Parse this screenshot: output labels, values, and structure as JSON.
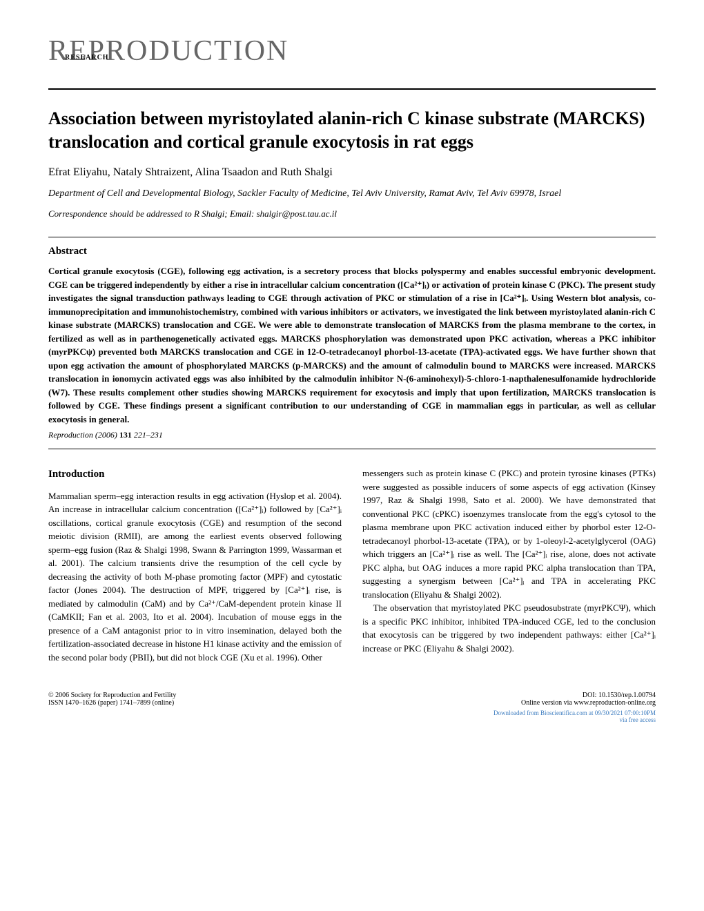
{
  "journal": {
    "name": "REPRODUCTION",
    "section_label": "RESEARCH"
  },
  "article": {
    "title": "Association between myristoylated alanin-rich C kinase substrate (MARCKS) translocation and cortical granule exocytosis in rat eggs",
    "authors": "Efrat Eliyahu, Nataly Shtraizent, Alina Tsaadon and Ruth Shalgi",
    "affiliation": "Department of Cell and Developmental Biology, Sackler Faculty of Medicine, Tel Aviv University, Ramat Aviv, Tel Aviv 69978, Israel",
    "correspondence": "Correspondence should be addressed to R Shalgi; Email: shalgir@post.tau.ac.il"
  },
  "abstract": {
    "heading": "Abstract",
    "text": "Cortical granule exocytosis (CGE), following egg activation, is a secretory process that blocks polyspermy and enables successful embryonic development. CGE can be triggered independently by either a rise in intracellular calcium concentration ([Ca²⁺]ᵢ) or activation of protein kinase C (PKC). The present study investigates the signal transduction pathways leading to CGE through activation of PKC or stimulation of a rise in [Ca²⁺]ᵢ. Using Western blot analysis, co-immunoprecipitation and immunohistochemistry, combined with various inhibitors or activators, we investigated the link between myristoylated alanin-rich C kinase substrate (MARCKS) translocation and CGE. We were able to demonstrate translocation of MARCKS from the plasma membrane to the cortex, in fertilized as well as in parthenogenetically activated eggs. MARCKS phosphorylation was demonstrated upon PKC activation, whereas a PKC inhibitor (myrPKCψ) prevented both MARCKS translocation and CGE in 12-O-tetradecanoyl phorbol-13-acetate (TPA)-activated eggs. We have further shown that upon egg activation the amount of phosphorylated MARCKS (p-MARCKS) and the amount of calmodulin bound to MARCKS were increased. MARCKS translocation in ionomycin activated eggs was also inhibited by the calmodulin inhibitor N-(6-aminohexyl)-5-chloro-1-napthalenesulfonamide hydrochloride (W7). These results complement other studies showing MARCKS requirement for exocytosis and imply that upon fertilization, MARCKS translocation is followed by CGE. These findings present a significant contribution to our understanding of CGE in mammalian eggs in particular, as well as cellular exocytosis in general.",
    "citation_journal": "Reproduction",
    "citation_year": "(2006)",
    "citation_vol": "131",
    "citation_pages": "221–231"
  },
  "introduction": {
    "heading": "Introduction",
    "col1_p1": "Mammalian sperm–egg interaction results in egg activation (Hyslop et al. 2004). An increase in intracellular calcium concentration ([Ca²⁺]ᵢ) followed by [Ca²⁺]ᵢ oscillations, cortical granule exocytosis (CGE) and resumption of the second meiotic division (RMII), are among the earliest events observed following sperm–egg fusion (Raz & Shalgi 1998, Swann & Parrington 1999, Wassarman et al. 2001). The calcium transients drive the resumption of the cell cycle by decreasing the activity of both M-phase promoting factor (MPF) and cytostatic factor (Jones 2004). The destruction of MPF, triggered by [Ca²⁺]ᵢ rise, is mediated by calmodulin (CaM) and by Ca²⁺/CaM-dependent protein kinase II (CaMKII; Fan et al. 2003, Ito et al. 2004). Incubation of mouse eggs in the presence of a CaM antagonist prior to in vitro insemination, delayed both the fertilization-associated decrease in histone H1 kinase activity and the emission of the second polar body (PBII), but did not block CGE (Xu et al. 1996). Other",
    "col2_p1": "messengers such as protein kinase C (PKC) and protein tyrosine kinases (PTKs) were suggested as possible inducers of some aspects of egg activation (Kinsey 1997, Raz & Shalgi 1998, Sato et al. 2000). We have demonstrated that conventional PKC (cPKC) isoenzymes translocate from the egg's cytosol to the plasma membrane upon PKC activation induced either by phorbol ester 12-O-tetradecanoyl phorbol-13-acetate (TPA), or by 1-oleoyl-2-acetylglycerol (OAG) which triggers an [Ca²⁺]ᵢ rise as well. The [Ca²⁺]ᵢ rise, alone, does not activate PKC alpha, but OAG induces a more rapid PKC alpha translocation than TPA, suggesting a synergism between [Ca²⁺]ᵢ and TPA in accelerating PKC translocation (Eliyahu & Shalgi 2002).",
    "col2_p2": "The observation that myristoylated PKC pseudosubstrate (myrPKCΨ), which is a specific PKC inhibitor, inhibited TPA-induced CGE, led to the conclusion that exocytosis can be triggered by two independent pathways: either [Ca²⁺]ᵢ increase or PKC (Eliyahu & Shalgi 2002)."
  },
  "footer": {
    "copyright": "© 2006 Society for Reproduction and Fertility",
    "issn": "ISSN 1470–1626 (paper) 1741–7899 (online)",
    "doi": "DOI: 10.1530/rep.1.00794",
    "online": "Online version via www.reproduction-online.org",
    "download": "Downloaded from Bioscientifica.com at 09/30/2021 07:00:10PM",
    "access": "via free access"
  },
  "styling": {
    "page_bg": "#ffffff",
    "text_color": "#000000",
    "journal_name_color": "#666666",
    "link_color": "#3b7bbf",
    "title_fontsize": 26,
    "body_fontsize": 13,
    "abstract_fontsize": 13
  }
}
